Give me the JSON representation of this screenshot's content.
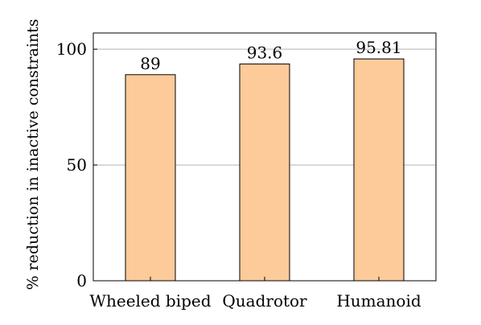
{
  "chart_data": {
    "type": "bar",
    "categories": [
      "Wheeled biped",
      "Quadrotor",
      "Humanoid"
    ],
    "values": [
      89,
      93.6,
      95.81
    ],
    "value_labels": [
      "89",
      "93.6",
      "95.81"
    ],
    "title": "",
    "xlabel": "",
    "ylabel": "% reduction in inactive constraints",
    "ylim": [
      0,
      107
    ],
    "yticks": [
      0,
      50,
      100
    ],
    "grid": "horizontal",
    "bar_color": "#FDCA9A",
    "bar_edge_color": "#000000",
    "grid_color": "#B3B3B3"
  }
}
